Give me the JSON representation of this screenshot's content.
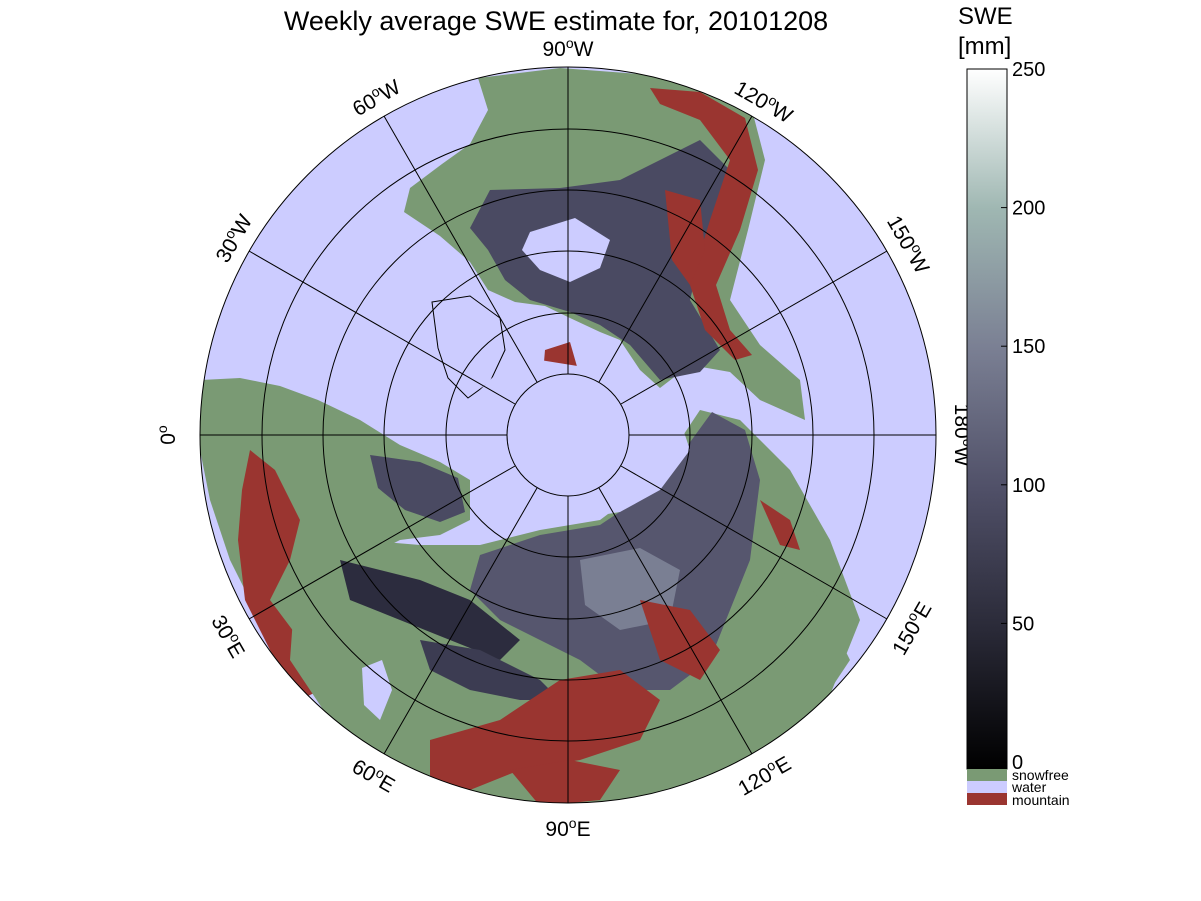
{
  "title": "Weekly average SWE estimate for, 20101208",
  "meridian_labels": [
    {
      "deg": "90",
      "dir": "W"
    },
    {
      "deg": "120",
      "dir": "W"
    },
    {
      "deg": "150",
      "dir": "W"
    },
    {
      "deg": "180",
      "dir": "W"
    },
    {
      "deg": "150",
      "dir": "E"
    },
    {
      "deg": "120",
      "dir": "E"
    },
    {
      "deg": "90",
      "dir": "E"
    },
    {
      "deg": "60",
      "dir": "E"
    },
    {
      "deg": "30",
      "dir": "E"
    },
    {
      "deg": "0",
      "dir": ""
    },
    {
      "deg": "30",
      "dir": "W"
    },
    {
      "deg": "60",
      "dir": "W"
    }
  ],
  "colorbar": {
    "title_line1": "SWE",
    "title_line2": "[mm]",
    "ticks": [
      "0",
      "50",
      "100",
      "150",
      "200",
      "250"
    ],
    "range": [
      0,
      250
    ],
    "gradient": [
      "#000000",
      "#2a2a38",
      "#505068",
      "#7a7f93",
      "#9fb7b2",
      "#ffffff"
    ]
  },
  "legend": [
    {
      "label": "snowfree",
      "color": "#7a9a74"
    },
    {
      "label": "water",
      "color": "#ccccff"
    },
    {
      "label": "mountain",
      "color": "#9a3530"
    }
  ],
  "colors": {
    "water": "#ccccff",
    "snowfree": "#7a9a74",
    "mountain": "#9a3530",
    "snow_dark": "#2c2c3e",
    "snow_mid": "#5c5c78"
  }
}
